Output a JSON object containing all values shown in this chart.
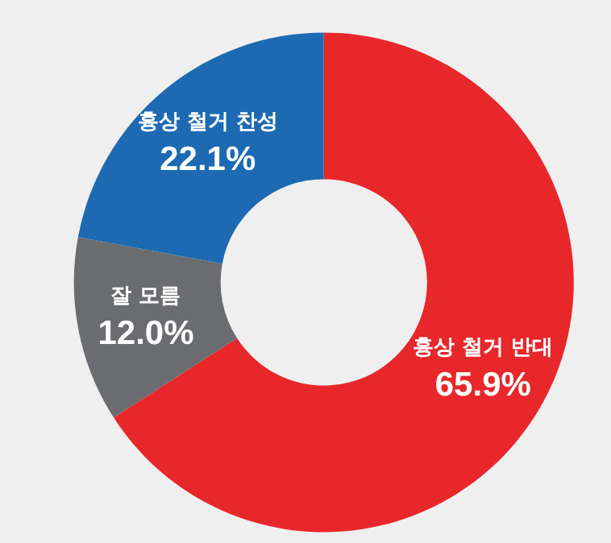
{
  "chart_data": {
    "type": "donut",
    "categories": [
      "흉상 철거 반대",
      "잘 모름",
      "흉상 철거 찬성"
    ],
    "values": [
      65.9,
      12.0,
      22.1
    ],
    "value_labels": [
      "65.9%",
      "12.0%",
      "22.1%"
    ],
    "colors": [
      "#e8272b",
      "#6b6c6f",
      "#1d6ab3"
    ],
    "legend": false
  }
}
